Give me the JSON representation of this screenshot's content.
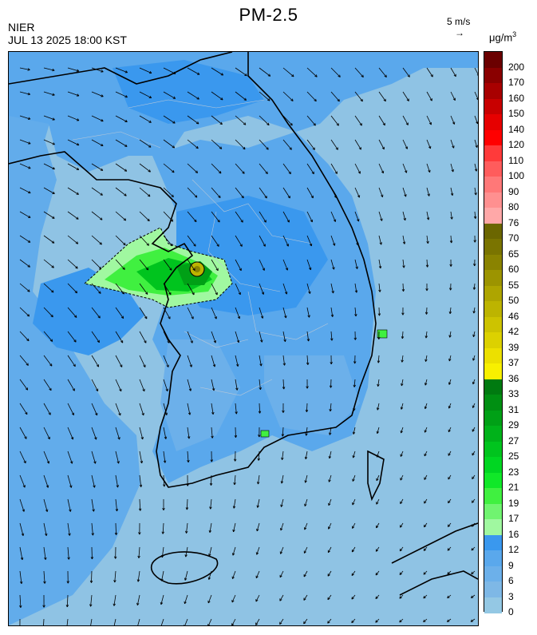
{
  "header": {
    "title": "PM-2.5",
    "agency": "NIER",
    "timestamp": "JUL 13 2025 18:00 KST",
    "reference_vector": "5 m/s",
    "reference_arrow": "→",
    "unit": "μg/m",
    "unit_exponent": "3"
  },
  "colorbar": {
    "segments": [
      {
        "label": "200",
        "color": "#6b0000"
      },
      {
        "label": "170",
        "color": "#8a0000"
      },
      {
        "label": "160",
        "color": "#a80000"
      },
      {
        "label": "150",
        "color": "#c80000"
      },
      {
        "label": "140",
        "color": "#e60000"
      },
      {
        "label": "120",
        "color": "#ff0000"
      },
      {
        "label": "110",
        "color": "#ff3a3a"
      },
      {
        "label": "100",
        "color": "#ff5c5c"
      },
      {
        "label": "90",
        "color": "#ff7878"
      },
      {
        "label": "80",
        "color": "#ff9090"
      },
      {
        "label": "76",
        "color": "#ffa8a8"
      },
      {
        "label": "70",
        "color": "#6b6600"
      },
      {
        "label": "65",
        "color": "#7a7400"
      },
      {
        "label": "60",
        "color": "#8a8300"
      },
      {
        "label": "55",
        "color": "#9c9400"
      },
      {
        "label": "50",
        "color": "#aea500"
      },
      {
        "label": "46",
        "color": "#bdb400"
      },
      {
        "label": "42",
        "color": "#cdc300"
      },
      {
        "label": "39",
        "color": "#dcd100"
      },
      {
        "label": "37",
        "color": "#ece000"
      },
      {
        "label": "36",
        "color": "#f8f000"
      },
      {
        "label": "33",
        "color": "#007a10"
      },
      {
        "label": "31",
        "color": "#008f12"
      },
      {
        "label": "29",
        "color": "#00a016"
      },
      {
        "label": "27",
        "color": "#00b21a"
      },
      {
        "label": "25",
        "color": "#00c41e"
      },
      {
        "label": "23",
        "color": "#00d622"
      },
      {
        "label": "21",
        "color": "#10e828"
      },
      {
        "label": "19",
        "color": "#40f040"
      },
      {
        "label": "17",
        "color": "#70f470"
      },
      {
        "label": "16",
        "color": "#a0f8a0"
      },
      {
        "label": "12",
        "color": "#3a98ee"
      },
      {
        "label": "9",
        "color": "#5aa8ec"
      },
      {
        "label": "6",
        "color": "#6cb0ea"
      },
      {
        "label": "3",
        "color": "#7eb8e6"
      },
      {
        "label": "0",
        "color": "#94c8e4"
      }
    ]
  },
  "map": {
    "ocean_color": "#8fc3e4",
    "low_color": "#5aa8ec",
    "mid_color": "#3a98ee",
    "hotspot_colors": [
      "#a0f8a0",
      "#40f040",
      "#00c41e",
      "#00a016",
      "#bdb400",
      "#8a8300"
    ],
    "coast_color": "#000000",
    "admin_border_color": "#b8c8d8",
    "wind_arrow_color": "#000000"
  }
}
